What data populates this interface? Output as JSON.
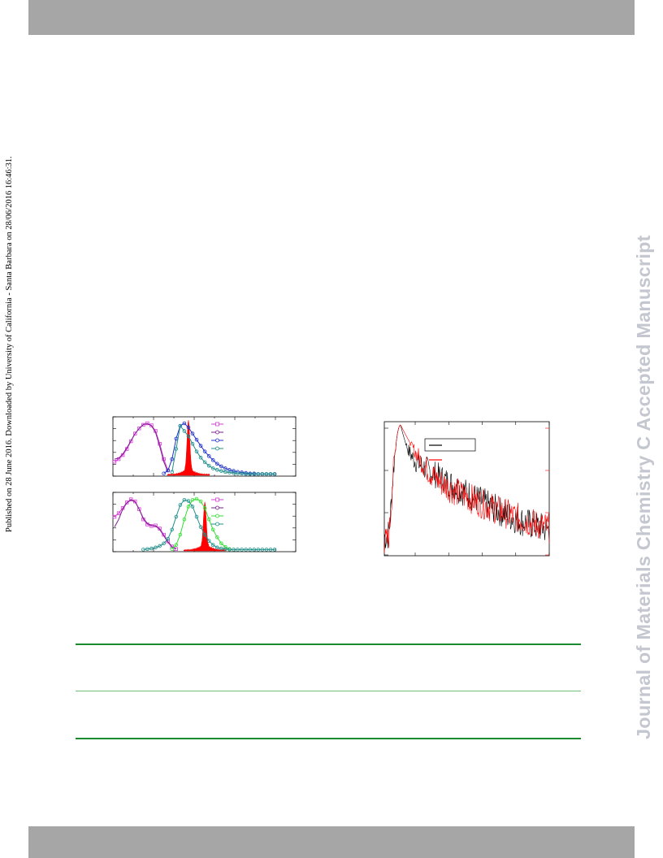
{
  "header": {
    "bar_color": "#a6a6a6"
  },
  "footer": {
    "bar_color": "#a6a6a6"
  },
  "side_note": "Published on 28 June 2016. Downloaded by University of California - Santa Barbara on 28/06/2016 16:46:31.",
  "watermark": "Journal of Materials Chemistry C Accepted Manuscript",
  "colors": {
    "magenta": "#d63bd6",
    "purple": "#7a1f8f",
    "blue": "#2233cc",
    "teal": "#1f8f8a",
    "green": "#33dd33",
    "red": "#ff0000",
    "black": "#000000",
    "rule": "#1a8a2e"
  },
  "chart_data": [
    {
      "type": "line",
      "panel": "spectra-top",
      "legend_placement": "top-right",
      "series": [
        {
          "color": "#d63bd6",
          "marker": "square",
          "x": [
            0,
            1,
            2,
            3,
            4,
            5,
            6,
            7,
            8,
            9,
            10,
            11,
            12,
            13
          ],
          "y": [
            0.25,
            0.3,
            0.38,
            0.5,
            0.65,
            0.8,
            0.9,
            0.97,
            1.0,
            0.96,
            0.85,
            0.6,
            0.3,
            0.08
          ]
        },
        {
          "color": "#7a1f8f",
          "marker": "none",
          "x": [
            0,
            1,
            2,
            3,
            4,
            5,
            6,
            7,
            8,
            9,
            10,
            11,
            12,
            13
          ],
          "y": [
            0.3,
            0.32,
            0.4,
            0.52,
            0.66,
            0.8,
            0.9,
            0.98,
            0.99,
            0.95,
            0.82,
            0.55,
            0.25,
            0.05
          ]
        },
        {
          "color": "#2233cc",
          "marker": "circle",
          "x": [
            12,
            13,
            14,
            15,
            16,
            17,
            18,
            19,
            20,
            21,
            22,
            23,
            24,
            25,
            26,
            27,
            28,
            29,
            30,
            31,
            32,
            33,
            34,
            35,
            36,
            37,
            38,
            39
          ],
          "y": [
            0.02,
            0.08,
            0.3,
            0.7,
            0.95,
            1.0,
            0.92,
            0.8,
            0.68,
            0.56,
            0.45,
            0.36,
            0.28,
            0.21,
            0.16,
            0.12,
            0.09,
            0.07,
            0.05,
            0.04,
            0.03,
            0.02,
            0.02,
            0.01,
            0.01,
            0.01,
            0.01,
            0.01
          ]
        },
        {
          "color": "#1f8f8a",
          "marker": "circle",
          "x": [
            14,
            15,
            16,
            17,
            18,
            19,
            20,
            21,
            22,
            23,
            24,
            25,
            26,
            27,
            28,
            29,
            30,
            31,
            32,
            33,
            34,
            35,
            36,
            37,
            38,
            39
          ],
          "y": [
            0.05,
            0.5,
            0.95,
            0.85,
            0.75,
            0.6,
            0.45,
            0.33,
            0.24,
            0.17,
            0.12,
            0.09,
            0.07,
            0.05,
            0.04,
            0.03,
            0.02,
            0.02,
            0.01,
            0.01,
            0.01,
            0.01,
            0.01,
            0.01,
            0.01,
            0.01
          ]
        }
      ],
      "filled_peak": {
        "color": "#ff0000",
        "center": 18,
        "height": 0.97
      }
    },
    {
      "type": "line",
      "panel": "spectra-bottom",
      "legend_placement": "top-right",
      "series": [
        {
          "color": "#d63bd6",
          "marker": "square",
          "x": [
            0,
            1,
            2,
            3,
            4,
            5,
            6,
            7,
            8,
            9,
            10,
            11,
            12,
            13,
            14,
            15
          ],
          "y": [
            0.65,
            0.72,
            0.82,
            0.93,
            0.99,
            0.95,
            0.8,
            0.6,
            0.5,
            0.47,
            0.48,
            0.42,
            0.3,
            0.17,
            0.07,
            0.02
          ]
        },
        {
          "color": "#7a1f8f",
          "marker": "none",
          "x": [
            0,
            1,
            2,
            3,
            4,
            5,
            6,
            7,
            8,
            9,
            10,
            11,
            12,
            13,
            14,
            15
          ],
          "y": [
            0.45,
            0.6,
            0.8,
            0.92,
            0.98,
            0.94,
            0.8,
            0.62,
            0.52,
            0.48,
            0.47,
            0.4,
            0.28,
            0.15,
            0.06,
            0.02
          ]
        },
        {
          "color": "#33dd33",
          "marker": "circle",
          "x": [
            14,
            15,
            16,
            17,
            18,
            19,
            20,
            21,
            22,
            23,
            24,
            25,
            26,
            27,
            28
          ],
          "y": [
            0.02,
            0.1,
            0.3,
            0.6,
            0.85,
            0.98,
            1.0,
            0.95,
            0.82,
            0.6,
            0.4,
            0.25,
            0.13,
            0.06,
            0.02
          ]
        },
        {
          "color": "#1f8f8a",
          "marker": "circle",
          "x": [
            7,
            8,
            9,
            10,
            11,
            12,
            13,
            14,
            15,
            16,
            17,
            18,
            19,
            20,
            21,
            22,
            23,
            24,
            25,
            26,
            27,
            28,
            29,
            30,
            31,
            32,
            33,
            34,
            35,
            36,
            37,
            38,
            39
          ],
          "y": [
            0.01,
            0.02,
            0.03,
            0.05,
            0.08,
            0.13,
            0.22,
            0.4,
            0.65,
            0.88,
            0.98,
            0.96,
            0.85,
            0.65,
            0.45,
            0.3,
            0.18,
            0.1,
            0.05,
            0.03,
            0.02,
            0.01,
            0.01,
            0.01,
            0.01,
            0.01,
            0.01,
            0.01,
            0.01,
            0.01,
            0.01,
            0.01,
            0.01
          ]
        }
      ],
      "filled_peak": {
        "color": "#ff0000",
        "center": 22,
        "height": 0.85
      }
    },
    {
      "type": "line",
      "panel": "decay",
      "y_scale": "log",
      "legend_placement": "top-right",
      "series": [
        {
          "color": "#000000",
          "noisy": true
        },
        {
          "color": "#ff0000",
          "noisy": true
        }
      ]
    }
  ]
}
